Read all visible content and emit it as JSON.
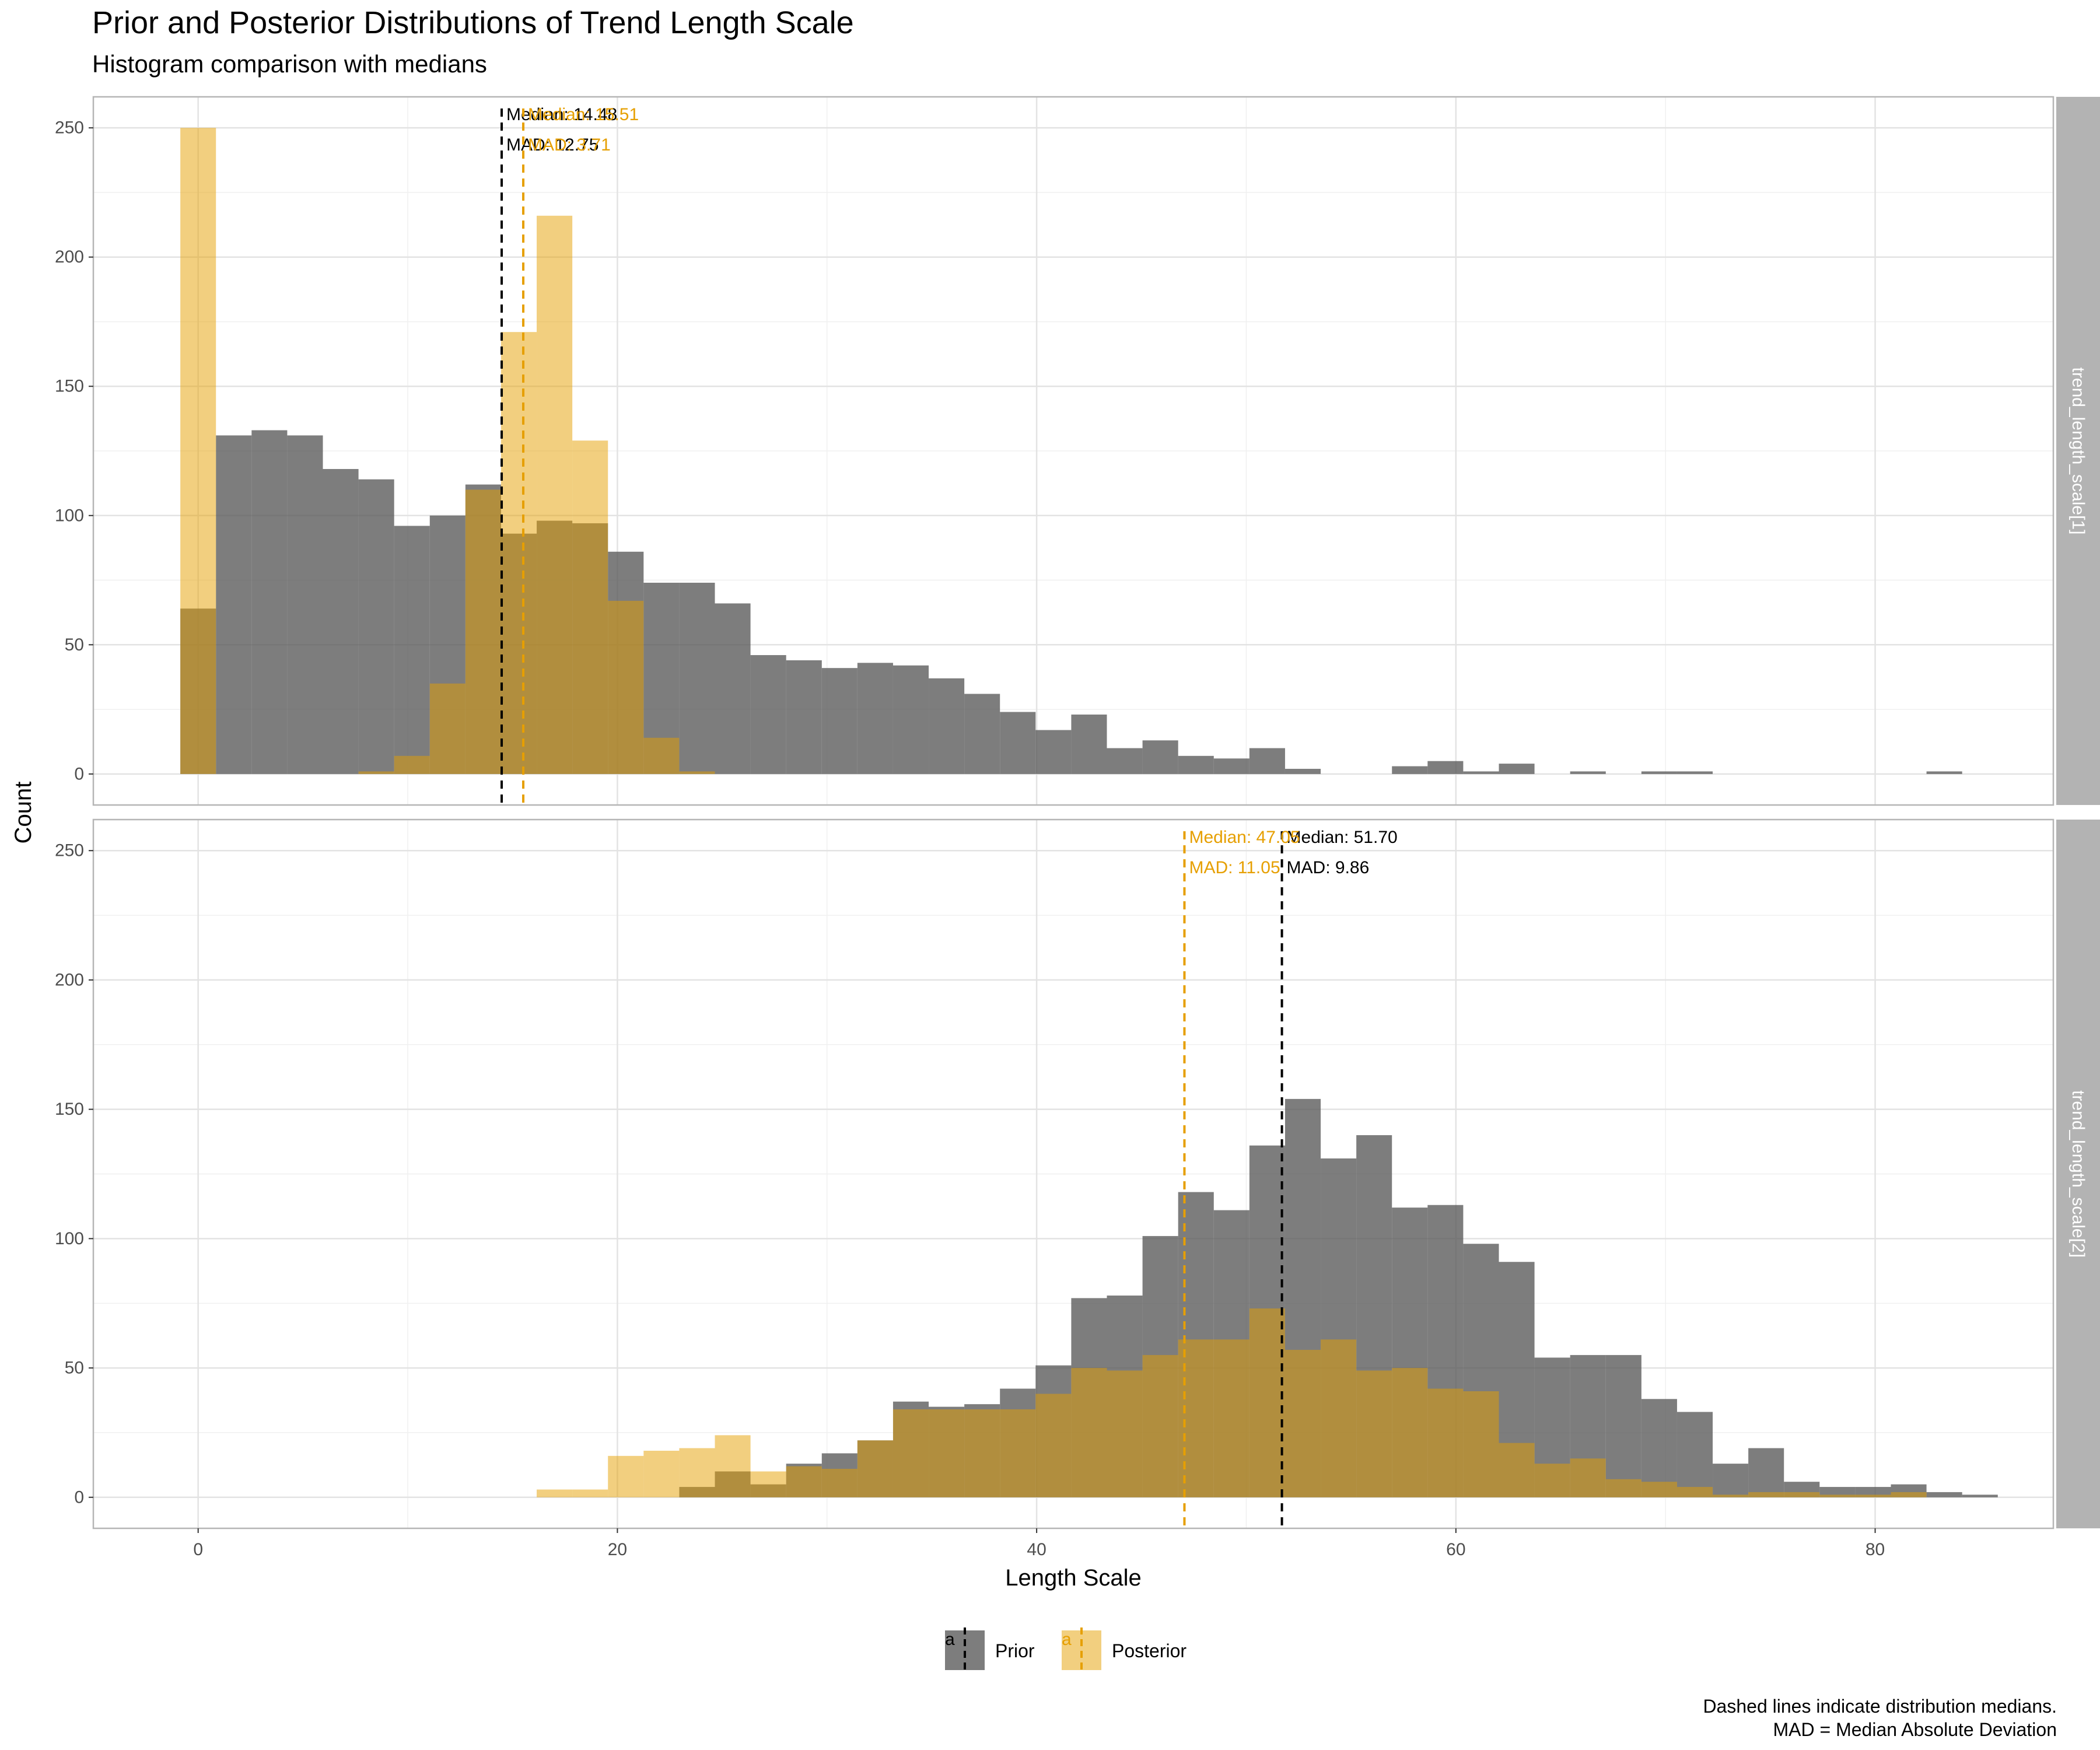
{
  "title": "Prior and Posterior Distributions of Trend Length Scale",
  "subtitle": "Histogram comparison with medians",
  "caption": [
    "Dashed lines indicate distribution medians.",
    "MAD = Median Absolute Deviation"
  ],
  "colors": {
    "prior": "#595959",
    "posterior": "#E69F00"
  },
  "chart_data": {
    "type": "bar",
    "xlabel": "Length Scale",
    "ylabel": "Count",
    "xlim": [
      -5,
      88.5
    ],
    "ylim": [
      -12,
      262
    ],
    "x_ticks": [
      0,
      20,
      40,
      60,
      80
    ],
    "y_ticks": [
      0,
      50,
      100,
      150,
      200,
      250
    ],
    "bin_width": 1.7,
    "grid": true,
    "legend": {
      "position": "bottom",
      "key_glyph": "a",
      "entries": [
        "Prior",
        "Posterior"
      ]
    },
    "panels": [
      {
        "strip": "trend_length_scale[1]",
        "bins_start": -0.85,
        "series": [
          {
            "name": "Prior",
            "values": [
              64,
              131,
              133,
              131,
              118,
              114,
              96,
              100,
              112,
              93,
              98,
              97,
              86,
              74,
              74,
              66,
              46,
              44,
              41,
              43,
              42,
              37,
              31,
              24,
              17,
              23,
              10,
              13,
              7,
              6,
              10,
              2,
              0,
              0,
              3,
              5,
              1,
              4,
              0,
              1,
              0,
              1,
              1,
              0,
              0,
              0,
              0,
              0,
              0,
              1
            ]
          },
          {
            "name": "Posterior",
            "values": [
              250,
              0,
              0,
              0,
              0,
              1,
              7,
              35,
              110,
              171,
              216,
              129,
              67,
              14,
              1,
              0,
              0,
              0,
              0,
              0,
              0,
              0,
              0,
              0,
              0,
              0,
              0,
              0,
              0,
              0,
              0,
              0,
              0,
              0,
              0,
              0,
              0,
              0,
              0,
              0,
              0,
              0,
              0,
              0,
              0,
              0,
              0,
              0,
              0,
              0
            ]
          }
        ],
        "medians": [
          {
            "name": "Prior",
            "median": 14.48,
            "median_label": "Median: 14.48",
            "mad_label": "MAD: 12.75"
          },
          {
            "name": "Posterior",
            "median": 15.51,
            "median_label": "Median: 15.51",
            "mad_label": "MAD: 3.71"
          }
        ]
      },
      {
        "strip": "trend_length_scale[2]",
        "bins_start": 16.15,
        "series": [
          {
            "name": "Prior",
            "values": [
              0,
              0,
              0,
              0,
              4,
              10,
              5,
              13,
              17,
              22,
              37,
              35,
              36,
              42,
              51,
              77,
              78,
              101,
              118,
              111,
              136,
              154,
              131,
              140,
              112,
              113,
              98,
              91,
              54,
              55,
              55,
              38,
              33,
              13,
              19,
              6,
              4,
              4,
              5,
              2,
              1
            ]
          },
          {
            "name": "Posterior",
            "values": [
              3,
              3,
              16,
              18,
              19,
              24,
              10,
              12,
              11,
              22,
              34,
              34,
              34,
              34,
              40,
              50,
              49,
              55,
              61,
              61,
              73,
              57,
              61,
              49,
              50,
              42,
              41,
              21,
              13,
              15,
              7,
              6,
              4,
              1,
              2,
              2,
              1,
              1,
              2,
              0,
              0
            ]
          }
        ],
        "medians": [
          {
            "name": "Prior",
            "median": 51.7,
            "median_label": "Median: 51.70",
            "mad_label": "MAD: 9.86"
          },
          {
            "name": "Posterior",
            "median": 47.05,
            "median_label": "Median: 47.05",
            "mad_label": "MAD: 11.05"
          }
        ]
      }
    ]
  }
}
